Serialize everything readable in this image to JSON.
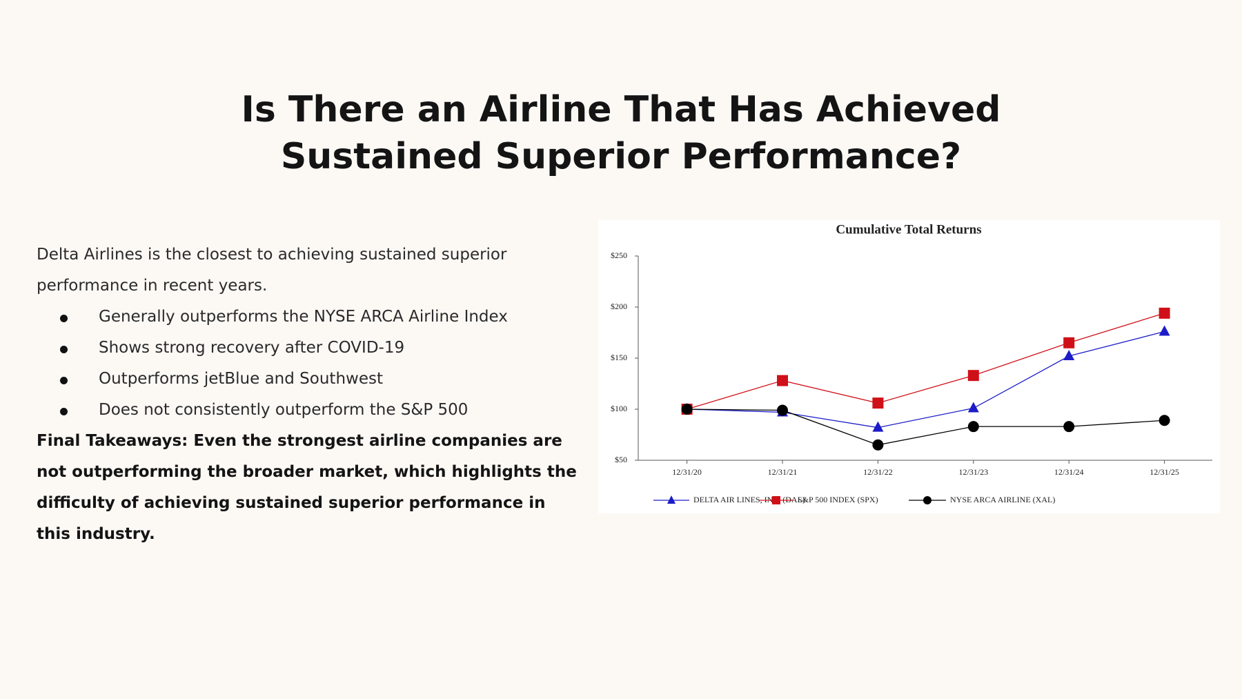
{
  "header": {
    "title": [
      "Is There an Airline That Has Achieved",
      "Sustained Superior Performance?"
    ]
  },
  "body": {
    "intro": "Delta Airlines is the closest to achieving sustained superior performance in recent years.",
    "bullets": [
      "Generally outperforms the NYSE ARCA Airline Index",
      "Shows strong recovery after COVID-19",
      "Outperforms jetBlue and Southwest",
      "Does not consistently outperform the S&P 500"
    ],
    "final": "Final Takeaways: Even the strongest airline companies are not outperforming the broader market, which highlights the difficulty of achieving sustained superior performance in this industry."
  },
  "chart_data": {
    "type": "line",
    "title": "Cumulative Total Returns",
    "categories": [
      "12/31/20",
      "12/31/21",
      "12/31/22",
      "12/31/23",
      "12/31/24",
      "12/31/25"
    ],
    "series": [
      {
        "name": "DELTA AIR LINES, INC. (DAL)",
        "color": "#1c1cc8",
        "marker": "triangle",
        "values": [
          100,
          97,
          82,
          101,
          152,
          176
        ]
      },
      {
        "name": "S&P 500 INDEX (SPX)",
        "color": "#d01018",
        "marker": "square",
        "values": [
          100,
          128,
          106,
          133,
          165,
          194
        ]
      },
      {
        "name": "NYSE ARCA AIRLINE (XAL)",
        "color": "#000000",
        "marker": "circle",
        "values": [
          100,
          99,
          65,
          83,
          83,
          89
        ]
      }
    ],
    "ylim": [
      50,
      250
    ],
    "yticks": [
      {
        "value": 50,
        "label": "$50"
      },
      {
        "value": 100,
        "label": "$100"
      },
      {
        "value": 150,
        "label": "$150"
      },
      {
        "value": 200,
        "label": "$200"
      },
      {
        "value": 250,
        "label": "$250"
      }
    ],
    "grid": false,
    "legend": "bottom"
  }
}
